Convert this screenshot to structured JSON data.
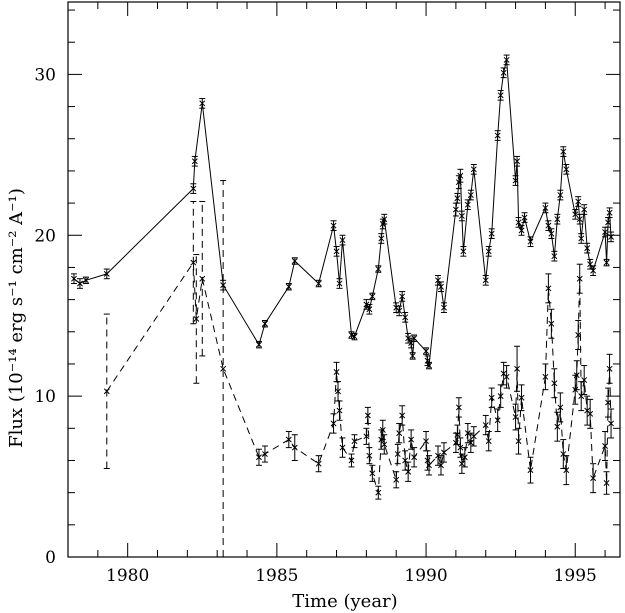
{
  "chart_data": {
    "type": "line",
    "title": "",
    "xlabel": "Time (year)",
    "ylabel": "Flux (10⁻¹⁴ erg s⁻¹ cm⁻² A⁻¹)",
    "xlim": [
      1978,
      1996.5
    ],
    "ylim": [
      0,
      34.5
    ],
    "xticks": [
      1980,
      1985,
      1990,
      1995
    ],
    "yticks": [
      0,
      10,
      20,
      30
    ],
    "grid": false,
    "legend": "none",
    "series": [
      {
        "style": "solid",
        "points": [
          {
            "x": 1978.2,
            "y": 17.3,
            "err": 0.3
          },
          {
            "x": 1978.4,
            "y": 17.0,
            "err": 0.3
          },
          {
            "x": 1978.6,
            "y": 17.2,
            "err": 0.2
          },
          {
            "x": 1979.3,
            "y": 17.6,
            "err": 0.3
          },
          {
            "x": 1982.2,
            "y": 22.9,
            "err": 0.3
          },
          {
            "x": 1982.25,
            "y": 24.6,
            "err": 0.3
          },
          {
            "x": 1982.5,
            "y": 28.2,
            "err": 0.3
          },
          {
            "x": 1983.2,
            "y": 16.9,
            "err": 0.3
          },
          {
            "x": 1984.4,
            "y": 13.2,
            "err": 0.2
          },
          {
            "x": 1984.6,
            "y": 14.5,
            "err": 0.2
          },
          {
            "x": 1985.4,
            "y": 16.8,
            "err": 0.2
          },
          {
            "x": 1985.6,
            "y": 18.4,
            "err": 0.2
          },
          {
            "x": 1986.4,
            "y": 17.0,
            "err": 0.2
          },
          {
            "x": 1986.9,
            "y": 20.6,
            "err": 0.3
          },
          {
            "x": 1987.0,
            "y": 19.0,
            "err": 0.3
          },
          {
            "x": 1987.1,
            "y": 17.0,
            "err": 0.3
          },
          {
            "x": 1987.2,
            "y": 19.7,
            "err": 0.3
          },
          {
            "x": 1987.5,
            "y": 13.8,
            "err": 0.2
          },
          {
            "x": 1987.6,
            "y": 13.7,
            "err": 0.2
          },
          {
            "x": 1988.0,
            "y": 15.7,
            "err": 0.3
          },
          {
            "x": 1988.1,
            "y": 15.4,
            "err": 0.3
          },
          {
            "x": 1988.2,
            "y": 16.2,
            "err": 0.2
          },
          {
            "x": 1988.4,
            "y": 17.9,
            "err": 0.2
          },
          {
            "x": 1988.5,
            "y": 19.8,
            "err": 0.3
          },
          {
            "x": 1988.55,
            "y": 20.7,
            "err": 0.3
          },
          {
            "x": 1988.6,
            "y": 21.0,
            "err": 0.3
          },
          {
            "x": 1989.0,
            "y": 15.5,
            "err": 0.3
          },
          {
            "x": 1989.1,
            "y": 15.3,
            "err": 0.3
          },
          {
            "x": 1989.2,
            "y": 16.2,
            "err": 0.3
          },
          {
            "x": 1989.3,
            "y": 14.9,
            "err": 0.3
          },
          {
            "x": 1989.4,
            "y": 13.6,
            "err": 0.3
          },
          {
            "x": 1989.5,
            "y": 13.3,
            "err": 0.3
          },
          {
            "x": 1989.55,
            "y": 12.5,
            "err": 0.2
          },
          {
            "x": 1989.6,
            "y": 13.6,
            "err": 0.2
          },
          {
            "x": 1990.0,
            "y": 12.8,
            "err": 0.2
          },
          {
            "x": 1990.05,
            "y": 12.2,
            "err": 0.3
          },
          {
            "x": 1990.1,
            "y": 11.9,
            "err": 0.2
          },
          {
            "x": 1990.4,
            "y": 17.2,
            "err": 0.3
          },
          {
            "x": 1990.5,
            "y": 16.8,
            "err": 0.3
          },
          {
            "x": 1990.6,
            "y": 15.5,
            "err": 0.3
          },
          {
            "x": 1991.0,
            "y": 21.6,
            "err": 0.4
          },
          {
            "x": 1991.05,
            "y": 22.3,
            "err": 0.3
          },
          {
            "x": 1991.1,
            "y": 23.3,
            "err": 0.4
          },
          {
            "x": 1991.15,
            "y": 23.7,
            "err": 0.4
          },
          {
            "x": 1991.2,
            "y": 21.2,
            "err": 0.3
          },
          {
            "x": 1991.25,
            "y": 19.0,
            "err": 0.3
          },
          {
            "x": 1991.4,
            "y": 21.9,
            "err": 0.3
          },
          {
            "x": 1991.5,
            "y": 22.5,
            "err": 0.3
          },
          {
            "x": 1991.6,
            "y": 24.1,
            "err": 0.3
          },
          {
            "x": 1992.0,
            "y": 17.2,
            "err": 0.3
          },
          {
            "x": 1992.1,
            "y": 19.0,
            "err": 0.3
          },
          {
            "x": 1992.2,
            "y": 20.1,
            "err": 0.3
          },
          {
            "x": 1992.4,
            "y": 26.2,
            "err": 0.3
          },
          {
            "x": 1992.5,
            "y": 28.7,
            "err": 0.3
          },
          {
            "x": 1992.6,
            "y": 30.1,
            "err": 0.3
          },
          {
            "x": 1992.7,
            "y": 30.9,
            "err": 0.3
          },
          {
            "x": 1993.0,
            "y": 23.4,
            "err": 0.3
          },
          {
            "x": 1993.05,
            "y": 24.6,
            "err": 0.3
          },
          {
            "x": 1993.1,
            "y": 20.8,
            "err": 0.3
          },
          {
            "x": 1993.2,
            "y": 20.3,
            "err": 0.3
          },
          {
            "x": 1993.3,
            "y": 21.1,
            "err": 0.3
          },
          {
            "x": 1993.5,
            "y": 19.6,
            "err": 0.3
          },
          {
            "x": 1994.0,
            "y": 21.7,
            "err": 0.3
          },
          {
            "x": 1994.1,
            "y": 20.6,
            "err": 0.3
          },
          {
            "x": 1994.2,
            "y": 20.1,
            "err": 0.3
          },
          {
            "x": 1994.3,
            "y": 18.7,
            "err": 0.3
          },
          {
            "x": 1994.4,
            "y": 21.0,
            "err": 0.3
          },
          {
            "x": 1994.5,
            "y": 22.5,
            "err": 0.3
          },
          {
            "x": 1994.6,
            "y": 25.2,
            "err": 0.3
          },
          {
            "x": 1994.7,
            "y": 24.1,
            "err": 0.3
          },
          {
            "x": 1995.0,
            "y": 21.3,
            "err": 0.3
          },
          {
            "x": 1995.1,
            "y": 22.1,
            "err": 0.3
          },
          {
            "x": 1995.15,
            "y": 21.0,
            "err": 0.3
          },
          {
            "x": 1995.2,
            "y": 19.8,
            "err": 0.3
          },
          {
            "x": 1995.3,
            "y": 21.6,
            "err": 0.3
          },
          {
            "x": 1995.4,
            "y": 19.2,
            "err": 0.3
          },
          {
            "x": 1995.5,
            "y": 18.2,
            "err": 0.3
          },
          {
            "x": 1995.6,
            "y": 17.8,
            "err": 0.3
          },
          {
            "x": 1996.0,
            "y": 20.2,
            "err": 0.3
          },
          {
            "x": 1996.05,
            "y": 18.3,
            "err": 0.2
          },
          {
            "x": 1996.1,
            "y": 20.8,
            "err": 0.3
          },
          {
            "x": 1996.15,
            "y": 21.4,
            "err": 0.3
          },
          {
            "x": 1996.2,
            "y": 19.9,
            "err": 0.3
          }
        ]
      },
      {
        "style": "dashed",
        "points": [
          {
            "x": 1979.3,
            "y": 10.3,
            "err": 4.8
          },
          {
            "x": 1982.2,
            "y": 18.3,
            "err": 3.8
          },
          {
            "x": 1982.3,
            "y": 14.8,
            "err": 4.0
          },
          {
            "x": 1982.5,
            "y": 17.3,
            "err": 4.8
          },
          {
            "x": 1983.2,
            "y": 11.7,
            "err": 11.7
          },
          {
            "x": 1984.4,
            "y": 6.2,
            "err": 0.5
          },
          {
            "x": 1984.6,
            "y": 6.4,
            "err": 0.5
          },
          {
            "x": 1985.4,
            "y": 7.3,
            "err": 0.5
          },
          {
            "x": 1985.6,
            "y": 6.8,
            "err": 0.8
          },
          {
            "x": 1986.4,
            "y": 5.8,
            "err": 0.5
          },
          {
            "x": 1986.9,
            "y": 8.3,
            "err": 0.6
          },
          {
            "x": 1987.0,
            "y": 11.5,
            "err": 0.6
          },
          {
            "x": 1987.05,
            "y": 10.3,
            "err": 0.6
          },
          {
            "x": 1987.1,
            "y": 9.1,
            "err": 0.6
          },
          {
            "x": 1987.2,
            "y": 6.8,
            "err": 0.6
          },
          {
            "x": 1987.5,
            "y": 6.0,
            "err": 0.4
          },
          {
            "x": 1987.6,
            "y": 7.2,
            "err": 0.4
          },
          {
            "x": 1988.0,
            "y": 7.5,
            "err": 0.5
          },
          {
            "x": 1988.05,
            "y": 8.8,
            "err": 0.5
          },
          {
            "x": 1988.1,
            "y": 6.3,
            "err": 0.5
          },
          {
            "x": 1988.2,
            "y": 5.2,
            "err": 0.5
          },
          {
            "x": 1988.4,
            "y": 4.0,
            "err": 0.4
          },
          {
            "x": 1988.5,
            "y": 7.3,
            "err": 0.6
          },
          {
            "x": 1988.55,
            "y": 7.9,
            "err": 0.6
          },
          {
            "x": 1988.6,
            "y": 7.0,
            "err": 0.6
          },
          {
            "x": 1989.0,
            "y": 4.8,
            "err": 0.5
          },
          {
            "x": 1989.05,
            "y": 6.4,
            "err": 0.6
          },
          {
            "x": 1989.1,
            "y": 7.7,
            "err": 0.6
          },
          {
            "x": 1989.2,
            "y": 8.8,
            "err": 0.6
          },
          {
            "x": 1989.3,
            "y": 6.0,
            "err": 0.6
          },
          {
            "x": 1989.4,
            "y": 5.3,
            "err": 0.6
          },
          {
            "x": 1989.5,
            "y": 7.3,
            "err": 0.6
          },
          {
            "x": 1989.6,
            "y": 6.2,
            "err": 0.6
          },
          {
            "x": 1990.0,
            "y": 7.2,
            "err": 0.6
          },
          {
            "x": 1990.05,
            "y": 6.0,
            "err": 0.6
          },
          {
            "x": 1990.1,
            "y": 5.7,
            "err": 0.6
          },
          {
            "x": 1990.4,
            "y": 6.3,
            "err": 0.6
          },
          {
            "x": 1990.5,
            "y": 5.7,
            "err": 0.6
          },
          {
            "x": 1990.6,
            "y": 6.5,
            "err": 0.6
          },
          {
            "x": 1991.0,
            "y": 7.1,
            "err": 0.6
          },
          {
            "x": 1991.05,
            "y": 7.6,
            "err": 0.6
          },
          {
            "x": 1991.1,
            "y": 9.3,
            "err": 0.6
          },
          {
            "x": 1991.15,
            "y": 6.8,
            "err": 0.6
          },
          {
            "x": 1991.2,
            "y": 5.8,
            "err": 0.6
          },
          {
            "x": 1991.3,
            "y": 6.2,
            "err": 0.6
          },
          {
            "x": 1991.4,
            "y": 7.7,
            "err": 0.6
          },
          {
            "x": 1991.5,
            "y": 7.1,
            "err": 0.6
          },
          {
            "x": 1991.6,
            "y": 7.5,
            "err": 0.6
          },
          {
            "x": 1992.0,
            "y": 8.2,
            "err": 0.6
          },
          {
            "x": 1992.1,
            "y": 7.2,
            "err": 0.6
          },
          {
            "x": 1992.2,
            "y": 9.9,
            "err": 0.6
          },
          {
            "x": 1992.4,
            "y": 8.5,
            "err": 0.7
          },
          {
            "x": 1992.5,
            "y": 10.0,
            "err": 0.7
          },
          {
            "x": 1992.6,
            "y": 11.4,
            "err": 0.7
          },
          {
            "x": 1992.7,
            "y": 11.2,
            "err": 0.7
          },
          {
            "x": 1993.0,
            "y": 8.7,
            "err": 0.8
          },
          {
            "x": 1993.05,
            "y": 11.7,
            "err": 1.4
          },
          {
            "x": 1993.1,
            "y": 7.2,
            "err": 0.8
          },
          {
            "x": 1993.2,
            "y": 9.9,
            "err": 0.8
          },
          {
            "x": 1993.5,
            "y": 5.4,
            "err": 0.8
          },
          {
            "x": 1994.0,
            "y": 11.2,
            "err": 0.8
          },
          {
            "x": 1994.1,
            "y": 16.7,
            "err": 0.9
          },
          {
            "x": 1994.2,
            "y": 14.5,
            "err": 0.9
          },
          {
            "x": 1994.3,
            "y": 10.8,
            "err": 0.9
          },
          {
            "x": 1994.4,
            "y": 8.1,
            "err": 0.9
          },
          {
            "x": 1994.5,
            "y": 9.3,
            "err": 0.9
          },
          {
            "x": 1994.6,
            "y": 6.4,
            "err": 0.9
          },
          {
            "x": 1994.7,
            "y": 5.4,
            "err": 0.9
          },
          {
            "x": 1995.0,
            "y": 10.4,
            "err": 0.9
          },
          {
            "x": 1995.05,
            "y": 11.3,
            "err": 0.9
          },
          {
            "x": 1995.1,
            "y": 13.8,
            "err": 0.9
          },
          {
            "x": 1995.15,
            "y": 17.3,
            "err": 0.9
          },
          {
            "x": 1995.2,
            "y": 10.0,
            "err": 0.9
          },
          {
            "x": 1995.3,
            "y": 11.0,
            "err": 0.9
          },
          {
            "x": 1995.4,
            "y": 9.1,
            "err": 0.9
          },
          {
            "x": 1995.5,
            "y": 8.9,
            "err": 0.9
          },
          {
            "x": 1995.6,
            "y": 4.9,
            "err": 0.9
          },
          {
            "x": 1996.0,
            "y": 6.9,
            "err": 0.9
          },
          {
            "x": 1996.05,
            "y": 4.6,
            "err": 0.7
          },
          {
            "x": 1996.1,
            "y": 9.6,
            "err": 0.9
          },
          {
            "x": 1996.15,
            "y": 11.7,
            "err": 0.9
          },
          {
            "x": 1996.2,
            "y": 8.3,
            "err": 0.9
          }
        ]
      }
    ]
  }
}
